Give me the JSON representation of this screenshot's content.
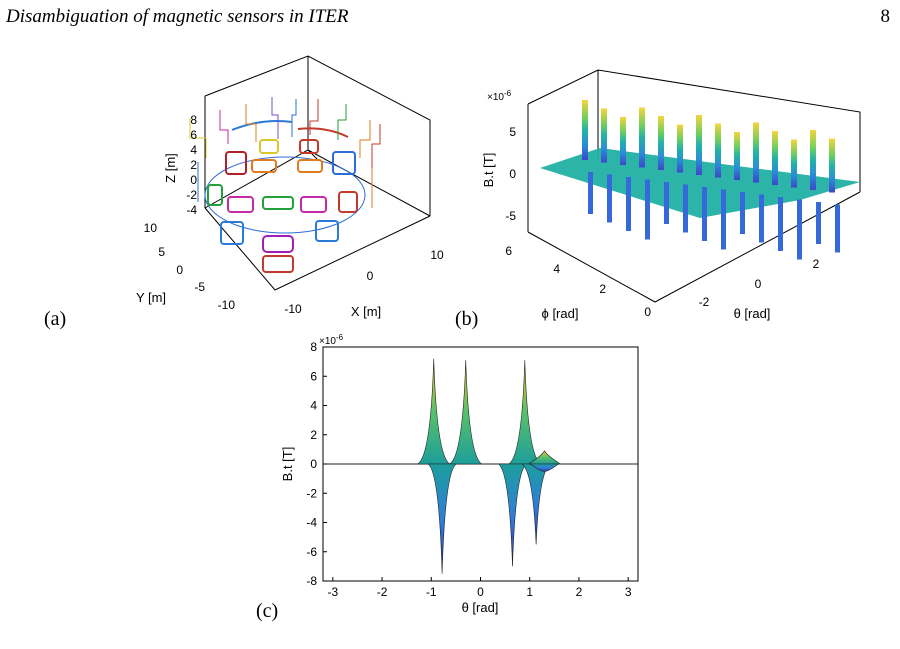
{
  "header": {
    "running_title": "Disambiguation of magnetic sensors in ITER",
    "page_number": "8"
  },
  "panel_labels": {
    "a": "(a)",
    "b": "(b)",
    "c": "(c)"
  },
  "chart_data": [
    {
      "id": "a",
      "type": "scatter",
      "title": "",
      "xlabel": "X [m]",
      "ylabel": "Y [m]",
      "zlabel": "Z [m]",
      "x_ticks": [
        "-10",
        "0",
        "10"
      ],
      "y_ticks": [
        "10",
        "5",
        "0",
        "-5",
        "-10"
      ],
      "z_ticks": [
        "8",
        "6",
        "4",
        "2",
        "0",
        "-2",
        "-4"
      ],
      "xlim": [
        -12,
        12
      ],
      "ylim": [
        -12,
        12
      ],
      "zlim": [
        -4,
        8
      ],
      "grid": false
    },
    {
      "id": "b",
      "type": "area",
      "title": "",
      "xlabel": "θ [rad]",
      "ylabel": "ϕ [rad]",
      "zlabel": "B.t [T]",
      "multiplier": "×10",
      "multiplier_exp": "-6",
      "x_ticks": [
        "-2",
        "0",
        "2"
      ],
      "y_ticks": [
        "0",
        "2",
        "4",
        "6"
      ],
      "z_ticks": [
        "5",
        "0",
        "-5"
      ],
      "xlim": [
        -3.14,
        3.14
      ],
      "ylim": [
        0,
        6.28
      ],
      "zlim": [
        -8,
        8
      ],
      "grid": false
    },
    {
      "id": "c",
      "type": "line",
      "title": "",
      "xlabel": "θ [rad]",
      "ylabel": "B.t [T]",
      "multiplier": "×10",
      "multiplier_exp": "-6",
      "x_ticks": [
        "-3",
        "-2",
        "-1",
        "0",
        "1",
        "2",
        "3"
      ],
      "y_ticks": [
        "8",
        "6",
        "4",
        "2",
        "0",
        "-2",
        "-4",
        "-6",
        "-8"
      ],
      "xlim": [
        -3.2,
        3.2
      ],
      "ylim": [
        -8,
        8
      ],
      "peaks": [
        {
          "theta": -0.95,
          "max": 7.2,
          "min": 0
        },
        {
          "theta": -0.3,
          "max": 7.1,
          "min": 0
        },
        {
          "theta": 0.9,
          "max": 7.1,
          "min": 0
        },
        {
          "theta": -0.78,
          "max": 0,
          "min": -7.5
        },
        {
          "theta": 0.65,
          "max": 0,
          "min": -7.0
        },
        {
          "theta": 1.13,
          "max": 0,
          "min": -5.5
        },
        {
          "theta": 1.3,
          "max": 0.9,
          "min": -0.5
        }
      ],
      "grid": false
    }
  ]
}
